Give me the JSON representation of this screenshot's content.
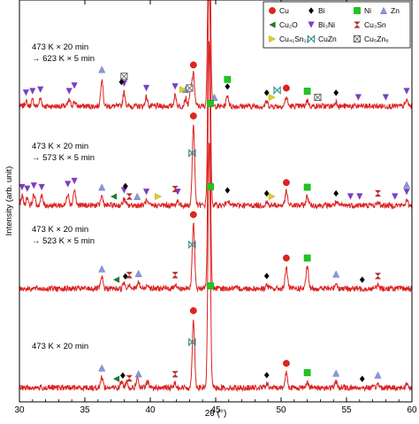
{
  "chart_data": {
    "type": "line",
    "xlabel": "2θ (°)",
    "ylabel": "Intensity (arb. unit)",
    "xlim": [
      30,
      60
    ],
    "xticks": [
      30,
      35,
      40,
      45,
      50,
      55,
      60
    ],
    "grid": false,
    "legend_position": "top-right",
    "line_color": "#dd2222",
    "series": [
      {
        "label_lines": [
          "473 K × 20 min",
          "→ 623 K × 5 min"
        ],
        "peaks": [
          [
            30.5,
            0.15
          ],
          [
            31.0,
            0.2
          ],
          [
            31.6,
            0.25
          ],
          [
            33.8,
            0.2
          ],
          [
            34.2,
            0.15
          ],
          [
            36.3,
            0.9
          ],
          [
            38.0,
            0.45
          ],
          [
            39.7,
            0.3
          ],
          [
            41.9,
            0.35
          ],
          [
            42.7,
            0.25
          ],
          [
            43.1,
            0.55
          ],
          [
            43.3,
            1.0
          ],
          [
            44.5,
            8.0
          ],
          [
            45.9,
            0.35
          ],
          [
            48.9,
            0.15
          ],
          [
            50.4,
            0.3
          ],
          [
            52.0,
            0.2
          ],
          [
            54.2,
            0.15
          ],
          [
            59.6,
            0.2
          ]
        ]
      },
      {
        "label_lines": [
          "473 K × 20 min",
          "→ 573 K × 5 min"
        ],
        "peaks": [
          [
            30.2,
            0.3
          ],
          [
            30.6,
            0.25
          ],
          [
            31.1,
            0.35
          ],
          [
            31.7,
            0.3
          ],
          [
            33.7,
            0.4
          ],
          [
            34.2,
            0.5
          ],
          [
            36.3,
            0.3
          ],
          [
            38.0,
            0.2
          ],
          [
            39.7,
            0.15
          ],
          [
            42.1,
            0.15
          ],
          [
            43.3,
            2.6
          ],
          [
            44.5,
            8.0
          ],
          [
            45.9,
            0.2
          ],
          [
            48.9,
            0.1
          ],
          [
            50.4,
            0.45
          ],
          [
            52.0,
            0.3
          ],
          [
            54.2,
            0.1
          ],
          [
            57.4,
            0.1
          ],
          [
            59.6,
            0.15
          ]
        ]
      },
      {
        "label_lines": [
          "473 K × 20 min",
          "→ 523 K × 5 min"
        ],
        "peaks": [
          [
            36.3,
            0.35
          ],
          [
            38.0,
            0.2
          ],
          [
            38.4,
            0.15
          ],
          [
            39.1,
            0.2
          ],
          [
            39.8,
            0.15
          ],
          [
            41.9,
            0.15
          ],
          [
            43.3,
            2.1
          ],
          [
            44.5,
            8.0
          ],
          [
            48.9,
            0.12
          ],
          [
            50.4,
            0.7
          ],
          [
            52.0,
            0.7
          ],
          [
            54.2,
            0.18
          ],
          [
            57.4,
            0.12
          ]
        ]
      },
      {
        "label_lines": [
          "473 K × 20 min"
        ],
        "peaks": [
          [
            36.3,
            0.35
          ],
          [
            37.8,
            0.2
          ],
          [
            38.2,
            0.2
          ],
          [
            39.0,
            0.3
          ],
          [
            39.8,
            0.2
          ],
          [
            41.9,
            0.15
          ],
          [
            43.3,
            2.2
          ],
          [
            44.5,
            8.0
          ],
          [
            48.9,
            0.12
          ],
          [
            50.4,
            0.5
          ],
          [
            52.0,
            0.2
          ],
          [
            54.2,
            0.18
          ],
          [
            57.4,
            0.12
          ],
          [
            59.6,
            0.12
          ]
        ]
      }
    ],
    "legend": [
      {
        "label": "Cu",
        "marker": "circle",
        "color": "#e8221b"
      },
      {
        "label": "Bi",
        "marker": "diamond",
        "color": "#000000"
      },
      {
        "label": "Ni",
        "marker": "square",
        "color": "#22c422"
      },
      {
        "label": "Zn",
        "marker": "triangle-up",
        "color": "#8899dd"
      },
      {
        "label": "Cu₂O",
        "marker": "triangle-left",
        "color": "#1f7a2e"
      },
      {
        "label": "Bi₃Ni",
        "marker": "triangle-down",
        "color": "#7a3fc4"
      },
      {
        "label": "Cu₃Sn",
        "marker": "hourglass",
        "color": "#b03030"
      },
      {
        "label": "Cu₄₁Sn₁₁",
        "marker": "triangle-right",
        "color": "#e0d020"
      },
      {
        "label": "CuZn",
        "marker": "bowtie",
        "color": "#2a8a8a"
      },
      {
        "label": "Cu₅Zn₈",
        "marker": "crossbox",
        "color": "#555555"
      }
    ],
    "phase_markers": [
      {
        "series": 0,
        "items": [
          {
            "m": "triangle-down",
            "x": [
              30.5,
              31.0,
              31.6,
              33.8,
              34.2,
              38.0,
              39.7,
              41.9,
              55.9,
              58.0,
              59.6
            ]
          },
          {
            "m": "triangle-up",
            "x": [
              36.3,
              42.7,
              44.9
            ]
          },
          {
            "m": "crossbox",
            "x": [
              38.0,
              43.0,
              52.8
            ]
          },
          {
            "m": "diamond",
            "x": [
              37.8,
              45.9,
              48.9,
              54.2
            ]
          },
          {
            "m": "circle",
            "x": [
              43.3,
              50.4
            ]
          },
          {
            "m": "square",
            "x": [
              45.9,
              52.0
            ]
          },
          {
            "m": "triangle-right",
            "x": [
              42.5,
              49.3
            ]
          },
          {
            "m": "bowtie",
            "x": [
              49.7
            ]
          }
        ]
      },
      {
        "series": 1,
        "items": [
          {
            "m": "triangle-down",
            "x": [
              30.2,
              30.6,
              31.1,
              31.7,
              33.7,
              34.2,
              38.0,
              39.7,
              42.1,
              55.3,
              56.0,
              58.7,
              59.6
            ]
          },
          {
            "m": "triangle-up",
            "x": [
              36.3,
              39.0,
              59.6
            ]
          },
          {
            "m": "triangle-left",
            "x": [
              37.2
            ]
          },
          {
            "m": "diamond",
            "x": [
              38.1,
              45.9,
              48.9,
              54.2
            ]
          },
          {
            "m": "hourglass",
            "x": [
              38.4,
              41.9,
              57.4
            ]
          },
          {
            "m": "triangle-right",
            "x": [
              40.6,
              49.3
            ]
          },
          {
            "m": "circle",
            "x": [
              43.3,
              50.4
            ]
          },
          {
            "m": "square",
            "x": [
              44.6,
              52.0
            ]
          },
          {
            "m": "bowtie",
            "x": [
              43.2
            ]
          }
        ]
      },
      {
        "series": 2,
        "items": [
          {
            "m": "triangle-up",
            "x": [
              36.3,
              39.1,
              54.2
            ]
          },
          {
            "m": "triangle-left",
            "x": [
              37.4
            ]
          },
          {
            "m": "diamond",
            "x": [
              38.1,
              48.9,
              56.2
            ]
          },
          {
            "m": "hourglass",
            "x": [
              38.4,
              41.9,
              57.4
            ]
          },
          {
            "m": "circle",
            "x": [
              43.3,
              50.4
            ]
          },
          {
            "m": "square",
            "x": [
              44.6,
              52.0
            ]
          },
          {
            "m": "bowtie",
            "x": [
              43.2
            ]
          }
        ]
      },
      {
        "series": 3,
        "items": [
          {
            "m": "triangle-up",
            "x": [
              36.3,
              39.1,
              54.2,
              57.4
            ]
          },
          {
            "m": "triangle-left",
            "x": [
              37.4
            ]
          },
          {
            "m": "diamond",
            "x": [
              37.9,
              48.9,
              56.2
            ]
          },
          {
            "m": "hourglass",
            "x": [
              38.4,
              41.9
            ]
          },
          {
            "m": "circle",
            "x": [
              43.3,
              50.4
            ]
          },
          {
            "m": "square",
            "x": [
              44.6,
              52.0
            ]
          },
          {
            "m": "bowtie",
            "x": [
              43.2
            ]
          }
        ]
      }
    ]
  }
}
